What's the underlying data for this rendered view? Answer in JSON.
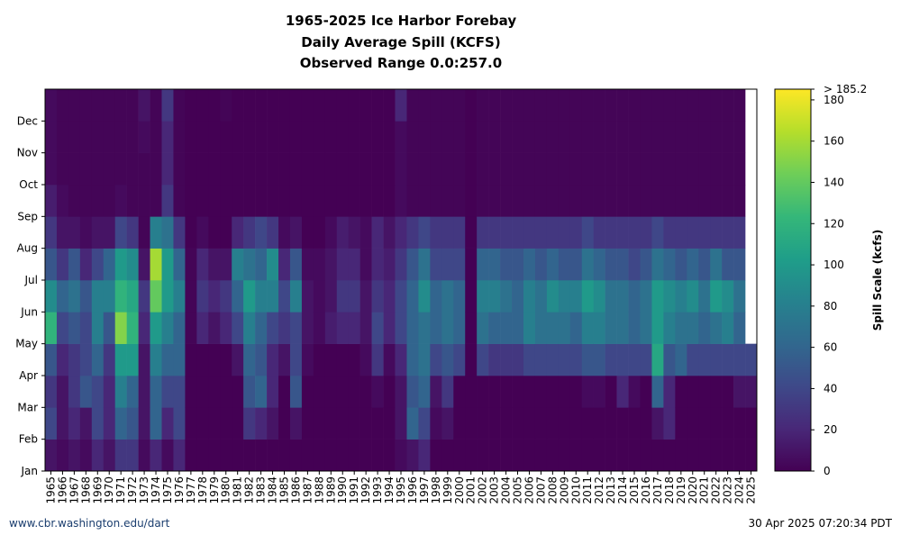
{
  "chart_data": {
    "type": "heatmap",
    "title": [
      "1965-2025 Ice Harbor Forebay",
      "Daily Average Spill (KCFS)",
      "Observed Range 0.0:257.0"
    ],
    "categories": [
      "1965",
      "1966",
      "1967",
      "1968",
      "1969",
      "1970",
      "1971",
      "1972",
      "1973",
      "1974",
      "1975",
      "1976",
      "1977",
      "1978",
      "1979",
      "1980",
      "1981",
      "1982",
      "1983",
      "1984",
      "1985",
      "1986",
      "1987",
      "1988",
      "1989",
      "1990",
      "1991",
      "1992",
      "1993",
      "1994",
      "1995",
      "1996",
      "1997",
      "1998",
      "1999",
      "2000",
      "2001",
      "2002",
      "2003",
      "2004",
      "2005",
      "2006",
      "2007",
      "2008",
      "2009",
      "2010",
      "2011",
      "2012",
      "2013",
      "2014",
      "2015",
      "2016",
      "2017",
      "2018",
      "2019",
      "2020",
      "2021",
      "2022",
      "2023",
      "2024",
      "2025"
    ],
    "months": [
      "Jan",
      "Feb",
      "Mar",
      "Apr",
      "May",
      "Jun",
      "Jul",
      "Aug",
      "Sep",
      "Oct",
      "Nov",
      "Dec"
    ],
    "values": [
      [
        10,
        40,
        30,
        50,
        120,
        90,
        50,
        30,
        15,
        5,
        5,
        5
      ],
      [
        5,
        10,
        10,
        20,
        40,
        60,
        30,
        10,
        5,
        2,
        2,
        2
      ],
      [
        10,
        20,
        30,
        30,
        50,
        70,
        50,
        10,
        2,
        2,
        2,
        2
      ],
      [
        5,
        10,
        50,
        40,
        40,
        50,
        20,
        5,
        2,
        2,
        2,
        2
      ],
      [
        20,
        40,
        40,
        60,
        80,
        80,
        40,
        10,
        2,
        2,
        2,
        2
      ],
      [
        10,
        20,
        20,
        30,
        50,
        80,
        60,
        10,
        2,
        2,
        2,
        2
      ],
      [
        30,
        60,
        80,
        100,
        150,
        120,
        100,
        40,
        5,
        2,
        2,
        2
      ],
      [
        30,
        50,
        60,
        100,
        120,
        110,
        90,
        30,
        2,
        2,
        2,
        2
      ],
      [
        5,
        10,
        10,
        10,
        20,
        30,
        10,
        2,
        2,
        2,
        5,
        10
      ],
      [
        20,
        60,
        60,
        80,
        100,
        140,
        160,
        80,
        2,
        2,
        2,
        2
      ],
      [
        5,
        20,
        40,
        60,
        80,
        100,
        100,
        70,
        30,
        20,
        20,
        30
      ],
      [
        20,
        40,
        40,
        60,
        60,
        80,
        60,
        30,
        2,
        2,
        2,
        2
      ],
      [
        0,
        0,
        0,
        0,
        2,
        2,
        2,
        0,
        0,
        0,
        0,
        0
      ],
      [
        0,
        0,
        0,
        0,
        20,
        30,
        20,
        5,
        0,
        0,
        0,
        0
      ],
      [
        0,
        0,
        0,
        0,
        10,
        20,
        10,
        0,
        0,
        0,
        0,
        0
      ],
      [
        0,
        0,
        0,
        0,
        20,
        30,
        10,
        0,
        0,
        0,
        0,
        2
      ],
      [
        0,
        0,
        0,
        10,
        40,
        60,
        80,
        20,
        0,
        0,
        0,
        0
      ],
      [
        0,
        30,
        50,
        60,
        80,
        100,
        70,
        30,
        0,
        0,
        0,
        0
      ],
      [
        0,
        20,
        60,
        50,
        60,
        80,
        60,
        40,
        0,
        0,
        0,
        0
      ],
      [
        0,
        10,
        20,
        20,
        40,
        80,
        90,
        30,
        0,
        0,
        0,
        0
      ],
      [
        0,
        0,
        0,
        10,
        30,
        40,
        20,
        5,
        0,
        0,
        0,
        0
      ],
      [
        0,
        10,
        50,
        40,
        40,
        80,
        50,
        10,
        0,
        0,
        0,
        0
      ],
      [
        0,
        0,
        0,
        5,
        10,
        10,
        5,
        0,
        0,
        0,
        0,
        0
      ],
      [
        0,
        0,
        0,
        0,
        5,
        5,
        5,
        0,
        0,
        0,
        0,
        0
      ],
      [
        0,
        0,
        0,
        0,
        15,
        10,
        10,
        5,
        0,
        0,
        0,
        0
      ],
      [
        0,
        0,
        0,
        0,
        20,
        30,
        20,
        15,
        0,
        0,
        0,
        0
      ],
      [
        0,
        0,
        0,
        0,
        20,
        30,
        20,
        10,
        0,
        0,
        0,
        0
      ],
      [
        0,
        0,
        0,
        5,
        10,
        10,
        5,
        5,
        0,
        0,
        0,
        0
      ],
      [
        0,
        0,
        5,
        30,
        40,
        30,
        20,
        20,
        0,
        0,
        0,
        0
      ],
      [
        0,
        0,
        0,
        5,
        20,
        20,
        15,
        10,
        0,
        0,
        0,
        0
      ],
      [
        5,
        10,
        10,
        20,
        40,
        40,
        30,
        20,
        5,
        5,
        5,
        20
      ],
      [
        10,
        60,
        50,
        60,
        60,
        60,
        50,
        30,
        2,
        2,
        2,
        2
      ],
      [
        20,
        40,
        60,
        70,
        70,
        90,
        70,
        40,
        2,
        2,
        2,
        2
      ],
      [
        0,
        5,
        10,
        40,
        60,
        60,
        40,
        30,
        2,
        2,
        2,
        2
      ],
      [
        0,
        10,
        30,
        50,
        70,
        70,
        40,
        30,
        2,
        2,
        2,
        2
      ],
      [
        0,
        0,
        0,
        40,
        60,
        60,
        40,
        30,
        2,
        2,
        2,
        2
      ],
      [
        0,
        0,
        0,
        0,
        0,
        0,
        0,
        0,
        0,
        0,
        0,
        0
      ],
      [
        0,
        0,
        0,
        40,
        70,
        80,
        60,
        30,
        2,
        2,
        2,
        2
      ],
      [
        0,
        0,
        0,
        30,
        60,
        80,
        60,
        30,
        2,
        2,
        2,
        2
      ],
      [
        0,
        0,
        0,
        30,
        60,
        70,
        50,
        30,
        2,
        2,
        2,
        2
      ],
      [
        0,
        0,
        0,
        30,
        60,
        60,
        50,
        30,
        2,
        2,
        2,
        2
      ],
      [
        0,
        0,
        0,
        40,
        80,
        80,
        60,
        30,
        2,
        2,
        2,
        2
      ],
      [
        0,
        0,
        0,
        40,
        70,
        70,
        50,
        30,
        2,
        2,
        2,
        2
      ],
      [
        0,
        0,
        0,
        40,
        70,
        90,
        60,
        30,
        2,
        2,
        2,
        2
      ],
      [
        0,
        0,
        0,
        40,
        70,
        80,
        50,
        30,
        2,
        2,
        2,
        2
      ],
      [
        0,
        0,
        0,
        40,
        60,
        80,
        50,
        30,
        2,
        2,
        2,
        2
      ],
      [
        0,
        0,
        5,
        50,
        80,
        100,
        70,
        40,
        2,
        2,
        2,
        2
      ],
      [
        0,
        0,
        5,
        50,
        80,
        90,
        60,
        30,
        2,
        2,
        2,
        2
      ],
      [
        0,
        0,
        0,
        40,
        70,
        70,
        50,
        30,
        2,
        2,
        2,
        2
      ],
      [
        0,
        0,
        20,
        40,
        70,
        70,
        50,
        30,
        2,
        2,
        2,
        2
      ],
      [
        0,
        0,
        5,
        40,
        60,
        60,
        40,
        30,
        2,
        2,
        2,
        2
      ],
      [
        0,
        0,
        0,
        40,
        70,
        70,
        50,
        30,
        2,
        2,
        2,
        2
      ],
      [
        0,
        10,
        60,
        110,
        100,
        100,
        70,
        40,
        2,
        2,
        2,
        2
      ],
      [
        0,
        20,
        20,
        50,
        80,
        90,
        60,
        30,
        2,
        2,
        2,
        2
      ],
      [
        0,
        0,
        0,
        60,
        70,
        80,
        50,
        30,
        2,
        2,
        2,
        2
      ],
      [
        0,
        0,
        0,
        40,
        70,
        90,
        60,
        30,
        2,
        2,
        2,
        2
      ],
      [
        0,
        0,
        0,
        40,
        60,
        70,
        50,
        30,
        2,
        2,
        2,
        2
      ],
      [
        0,
        0,
        0,
        40,
        70,
        100,
        70,
        30,
        2,
        2,
        2,
        2
      ],
      [
        0,
        0,
        0,
        40,
        80,
        90,
        50,
        30,
        2,
        2,
        2,
        2
      ],
      [
        0,
        0,
        10,
        40,
        60,
        70,
        50,
        30,
        2,
        2,
        2,
        2
      ],
      [
        0,
        0,
        10,
        40,
        null,
        null,
        null,
        null,
        null,
        null,
        null,
        null
      ]
    ],
    "colorscale": [
      "#440154",
      "#482878",
      "#3e4989",
      "#31688e",
      "#26828e",
      "#1f9e89",
      "#35b779",
      "#6ece58",
      "#b5de2b",
      "#fde725"
    ],
    "zlim": [
      0,
      185.2
    ],
    "zticks": [
      0,
      20,
      40,
      60,
      80,
      100,
      120,
      140,
      160,
      180,
      {
        "value": 185.2,
        "label": "> 185.2"
      }
    ],
    "colorbar_label": "Spill Scale (kcfs)",
    "footer_left": "www.cbr.washington.edu/dart",
    "footer_right": "30 Apr 2025 07:20:34 PDT"
  }
}
